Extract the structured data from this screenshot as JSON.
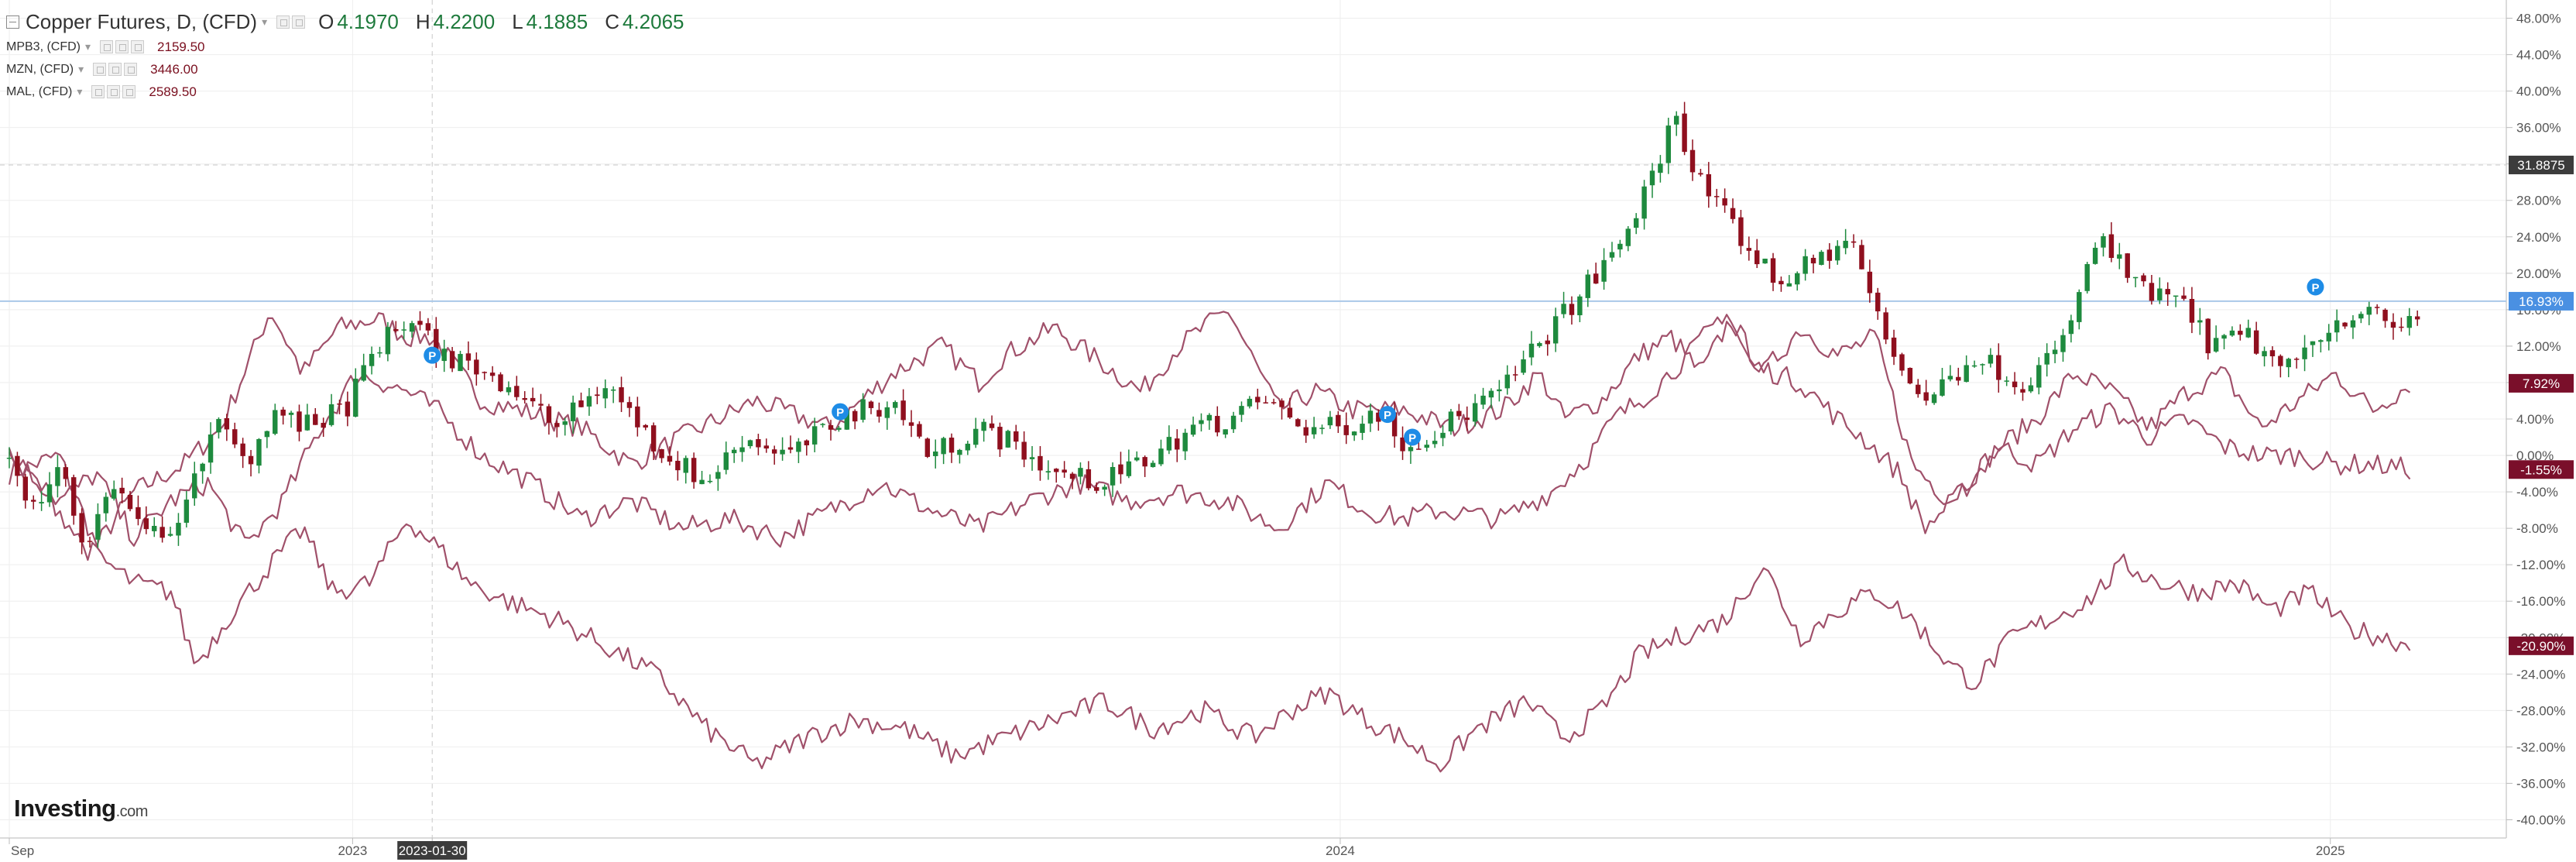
{
  "legend": {
    "main": {
      "title": "Copper Futures, D, (CFD)",
      "o_label": "O",
      "o": "4.1970",
      "h_label": "H",
      "h": "4.2200",
      "l_label": "L",
      "l": "4.1885",
      "c_label": "C",
      "c": "4.2065"
    },
    "overlays": [
      {
        "name": "MPB3, (CFD)",
        "value": "2159.50"
      },
      {
        "name": "MZN, (CFD)",
        "value": "3446.00"
      },
      {
        "name": "MAL, (CFD)",
        "value": "2589.50"
      }
    ]
  },
  "brand": {
    "name": "Investing",
    "suffix": ".com"
  },
  "colors": {
    "up": "#1e8a3e",
    "down": "#8f0f1e",
    "overlay": "#a0506a",
    "current_line": "#aac8e8",
    "current_tag": "#4a90e2",
    "overlay_tag": "#7a0f2a",
    "crosshair_tag": "#3c3c3c",
    "grid": "#eeeeee",
    "marker": "#1e8ce6"
  },
  "chart_data": {
    "type": "line",
    "y_unit": "%",
    "ylim": [
      -42,
      50
    ],
    "y_ticks": [
      "48.00%",
      "44.00%",
      "40.00%",
      "36.00%",
      "32.00%",
      "28.00%",
      "24.00%",
      "20.00%",
      "16.00%",
      "12.00%",
      "8.00%",
      "4.00%",
      "0.00%",
      "-4.00%",
      "-8.00%",
      "-12.00%",
      "-16.00%",
      "-20.00%",
      "-24.00%",
      "-28.00%",
      "-32.00%",
      "-36.00%",
      "-40.00%"
    ],
    "x_tick_labels": [
      {
        "label": "Sep",
        "t": 0.0
      },
      {
        "label": "2023",
        "t": 0.138
      },
      {
        "label": "2023-01-30",
        "t": 0.17,
        "highlight": true
      },
      {
        "label": "2024",
        "t": 0.535
      },
      {
        "label": "2025",
        "t": 0.933
      }
    ],
    "crosshair": {
      "t": 0.17,
      "y_value": 31.8875,
      "y_label": "31.8875"
    },
    "current_value": {
      "value": 16.93,
      "label": "16.93%"
    },
    "price_tags": [
      {
        "value": 7.92,
        "label": "7.92%"
      },
      {
        "value": -1.55,
        "label": "-1.55%"
      },
      {
        "value": -20.9,
        "label": "-20.90%"
      }
    ],
    "markers": [
      {
        "label": "P",
        "t": 0.17,
        "y": 11.0
      },
      {
        "label": "P",
        "t": 0.334,
        "y": 4.8
      },
      {
        "label": "P",
        "t": 0.554,
        "y": 4.5
      },
      {
        "label": "P",
        "t": 0.564,
        "y": 2.0
      },
      {
        "label": "P",
        "t": 0.927,
        "y": 18.5
      }
    ],
    "candles": {
      "name": "Copper Futures, D, (CFD)",
      "count": 300,
      "anchors": [
        [
          0.0,
          0
        ],
        [
          0.01,
          -6
        ],
        [
          0.02,
          -1
        ],
        [
          0.03,
          -10
        ],
        [
          0.042,
          -3
        ],
        [
          0.055,
          -9
        ],
        [
          0.07,
          -7
        ],
        [
          0.082,
          4
        ],
        [
          0.095,
          -1
        ],
        [
          0.106,
          5
        ],
        [
          0.118,
          3
        ],
        [
          0.135,
          5
        ],
        [
          0.148,
          12
        ],
        [
          0.162,
          15
        ],
        [
          0.173,
          11
        ],
        [
          0.185,
          10
        ],
        [
          0.2,
          8
        ],
        [
          0.22,
          3
        ],
        [
          0.24,
          8
        ],
        [
          0.26,
          1
        ],
        [
          0.28,
          -3
        ],
        [
          0.295,
          2
        ],
        [
          0.315,
          0
        ],
        [
          0.333,
          4
        ],
        [
          0.355,
          6
        ],
        [
          0.37,
          0
        ],
        [
          0.39,
          3
        ],
        [
          0.405,
          1
        ],
        [
          0.42,
          -2
        ],
        [
          0.44,
          -3
        ],
        [
          0.46,
          0
        ],
        [
          0.475,
          3
        ],
        [
          0.49,
          4
        ],
        [
          0.505,
          6
        ],
        [
          0.52,
          3
        ],
        [
          0.535,
          3
        ],
        [
          0.55,
          5
        ],
        [
          0.562,
          1
        ],
        [
          0.575,
          3
        ],
        [
          0.6,
          7
        ],
        [
          0.62,
          14
        ],
        [
          0.645,
          22
        ],
        [
          0.66,
          30
        ],
        [
          0.67,
          38
        ],
        [
          0.677,
          31
        ],
        [
          0.69,
          26
        ],
        [
          0.71,
          19
        ],
        [
          0.725,
          21
        ],
        [
          0.74,
          24
        ],
        [
          0.755,
          12
        ],
        [
          0.77,
          6
        ],
        [
          0.79,
          11
        ],
        [
          0.81,
          8
        ],
        [
          0.825,
          12
        ],
        [
          0.84,
          24
        ],
        [
          0.856,
          18
        ],
        [
          0.872,
          17
        ],
        [
          0.885,
          12
        ],
        [
          0.9,
          13
        ],
        [
          0.915,
          9
        ],
        [
          0.93,
          14
        ],
        [
          0.945,
          16
        ],
        [
          0.96,
          14
        ],
        [
          0.968,
          15.5
        ]
      ]
    },
    "series": [
      {
        "name": "MPB3, (CFD)",
        "anchors": [
          [
            0.0,
            -2
          ],
          [
            0.02,
            0
          ],
          [
            0.035,
            -10
          ],
          [
            0.05,
            -4
          ],
          [
            0.07,
            -1
          ],
          [
            0.085,
            3
          ],
          [
            0.105,
            16
          ],
          [
            0.118,
            9
          ],
          [
            0.132,
            14
          ],
          [
            0.148,
            15
          ],
          [
            0.16,
            13
          ],
          [
            0.17,
            13
          ],
          [
            0.19,
            6
          ],
          [
            0.205,
            5
          ],
          [
            0.23,
            3
          ],
          [
            0.25,
            -1
          ],
          [
            0.27,
            2
          ],
          [
            0.3,
            6
          ],
          [
            0.33,
            3
          ],
          [
            0.355,
            9
          ],
          [
            0.375,
            12
          ],
          [
            0.39,
            8
          ],
          [
            0.4,
            11
          ],
          [
            0.42,
            14
          ],
          [
            0.44,
            10
          ],
          [
            0.455,
            7
          ],
          [
            0.47,
            12
          ],
          [
            0.49,
            16
          ],
          [
            0.51,
            5
          ],
          [
            0.525,
            7
          ],
          [
            0.54,
            5
          ],
          [
            0.56,
            5
          ],
          [
            0.58,
            3
          ],
          [
            0.6,
            5
          ],
          [
            0.615,
            9
          ],
          [
            0.625,
            4
          ],
          [
            0.64,
            6
          ],
          [
            0.655,
            11
          ],
          [
            0.668,
            13
          ],
          [
            0.68,
            9
          ],
          [
            0.692,
            15
          ],
          [
            0.705,
            9
          ],
          [
            0.72,
            14
          ],
          [
            0.735,
            11
          ],
          [
            0.75,
            13
          ],
          [
            0.765,
            -1
          ],
          [
            0.78,
            -5
          ],
          [
            0.8,
            1
          ],
          [
            0.815,
            4
          ],
          [
            0.83,
            9
          ],
          [
            0.845,
            7
          ],
          [
            0.86,
            3
          ],
          [
            0.875,
            7
          ],
          [
            0.89,
            9
          ],
          [
            0.905,
            3
          ],
          [
            0.92,
            6
          ],
          [
            0.935,
            9
          ],
          [
            0.95,
            5
          ],
          [
            0.965,
            7.9
          ]
        ]
      },
      {
        "name": "MZN, (CFD)",
        "anchors": [
          [
            0.0,
            0
          ],
          [
            0.02,
            -5
          ],
          [
            0.035,
            -2
          ],
          [
            0.05,
            -9
          ],
          [
            0.065,
            -5
          ],
          [
            0.08,
            -3
          ],
          [
            0.095,
            -10
          ],
          [
            0.11,
            -5
          ],
          [
            0.125,
            3
          ],
          [
            0.14,
            9
          ],
          [
            0.16,
            7
          ],
          [
            0.172,
            5
          ],
          [
            0.19,
            0
          ],
          [
            0.21,
            -3
          ],
          [
            0.23,
            -7
          ],
          [
            0.25,
            -5
          ],
          [
            0.27,
            -8
          ],
          [
            0.29,
            -7
          ],
          [
            0.31,
            -9
          ],
          [
            0.33,
            -6
          ],
          [
            0.35,
            -3
          ],
          [
            0.37,
            -6
          ],
          [
            0.39,
            -8
          ],
          [
            0.41,
            -5
          ],
          [
            0.43,
            -3
          ],
          [
            0.45,
            -5
          ],
          [
            0.47,
            -4
          ],
          [
            0.49,
            -5
          ],
          [
            0.51,
            -8
          ],
          [
            0.53,
            -3
          ],
          [
            0.545,
            -6
          ],
          [
            0.56,
            -7
          ],
          [
            0.575,
            -6
          ],
          [
            0.6,
            -7
          ],
          [
            0.62,
            -4
          ],
          [
            0.635,
            0
          ],
          [
            0.645,
            4
          ],
          [
            0.66,
            7
          ],
          [
            0.675,
            11
          ],
          [
            0.69,
            16
          ],
          [
            0.7,
            10
          ],
          [
            0.72,
            8
          ],
          [
            0.735,
            4
          ],
          [
            0.745,
            2
          ],
          [
            0.76,
            -2
          ],
          [
            0.77,
            -8
          ],
          [
            0.785,
            -4
          ],
          [
            0.8,
            1
          ],
          [
            0.815,
            -1
          ],
          [
            0.83,
            3
          ],
          [
            0.845,
            5
          ],
          [
            0.86,
            2
          ],
          [
            0.875,
            4
          ],
          [
            0.89,
            1
          ],
          [
            0.905,
            0
          ],
          [
            0.92,
            0
          ],
          [
            0.935,
            -1
          ],
          [
            0.95,
            -1
          ],
          [
            0.965,
            -1.5
          ]
        ]
      },
      {
        "name": "MAL, (CFD)",
        "anchors": [
          [
            0.0,
            0
          ],
          [
            0.015,
            -4
          ],
          [
            0.03,
            -10
          ],
          [
            0.05,
            -14
          ],
          [
            0.065,
            -15
          ],
          [
            0.075,
            -23
          ],
          [
            0.09,
            -17
          ],
          [
            0.105,
            -12
          ],
          [
            0.118,
            -8
          ],
          [
            0.13,
            -15
          ],
          [
            0.145,
            -14
          ],
          [
            0.16,
            -7
          ],
          [
            0.172,
            -10
          ],
          [
            0.185,
            -14
          ],
          [
            0.2,
            -16
          ],
          [
            0.22,
            -18
          ],
          [
            0.24,
            -21
          ],
          [
            0.26,
            -24
          ],
          [
            0.28,
            -30
          ],
          [
            0.3,
            -34
          ],
          [
            0.32,
            -31
          ],
          [
            0.34,
            -29
          ],
          [
            0.36,
            -30
          ],
          [
            0.38,
            -33
          ],
          [
            0.4,
            -31
          ],
          [
            0.42,
            -29
          ],
          [
            0.44,
            -27
          ],
          [
            0.46,
            -30
          ],
          [
            0.48,
            -28
          ],
          [
            0.5,
            -31
          ],
          [
            0.515,
            -28
          ],
          [
            0.53,
            -26
          ],
          [
            0.545,
            -29
          ],
          [
            0.56,
            -31
          ],
          [
            0.575,
            -34
          ],
          [
            0.59,
            -30
          ],
          [
            0.61,
            -27
          ],
          [
            0.625,
            -31
          ],
          [
            0.64,
            -28
          ],
          [
            0.655,
            -22
          ],
          [
            0.67,
            -20
          ],
          [
            0.69,
            -18
          ],
          [
            0.705,
            -12
          ],
          [
            0.72,
            -20
          ],
          [
            0.735,
            -17
          ],
          [
            0.75,
            -15
          ],
          [
            0.765,
            -18
          ],
          [
            0.78,
            -23
          ],
          [
            0.79,
            -25
          ],
          [
            0.805,
            -20
          ],
          [
            0.82,
            -18
          ],
          [
            0.835,
            -16
          ],
          [
            0.85,
            -12
          ],
          [
            0.865,
            -14
          ],
          [
            0.88,
            -15
          ],
          [
            0.895,
            -14
          ],
          [
            0.91,
            -17
          ],
          [
            0.925,
            -15
          ],
          [
            0.94,
            -19
          ],
          [
            0.955,
            -20
          ],
          [
            0.965,
            -20.9
          ]
        ]
      }
    ]
  }
}
